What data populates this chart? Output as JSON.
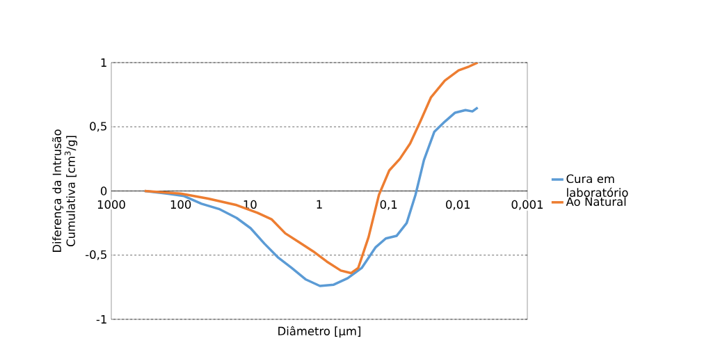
{
  "chart_data": {
    "type": "line",
    "xlabel": "Diâmetro [µm]",
    "ylabel": "Diferença da Intrusão Cumulativa [cm$^{3}$/g]",
    "log": "x",
    "xlim": [
      1000,
      0.001
    ],
    "xticks": [
      1000,
      100,
      10,
      1,
      {
        "value": 0.1,
        "label": "0,1"
      },
      {
        "value": 0.01,
        "label": "0,01"
      },
      {
        "value": 0.001,
        "label": "0,001"
      }
    ],
    "ylim": [
      -1,
      1
    ],
    "yticks": [
      -1,
      {
        "value": -0.5,
        "label": "-0,5"
      },
      0,
      {
        "value": 0.5,
        "label": "0,5"
      },
      1
    ],
    "grid": "y",
    "legend": "right",
    "series": [
      {
        "name": "Cura em laboratório",
        "color": "#5b9bd5",
        "x": [
          331,
          158,
          89,
          50,
          28,
          15.6,
          9.8,
          6.2,
          3.9,
          2.5,
          1.56,
          0.98,
          0.62,
          0.39,
          0.245,
          0.155,
          0.11,
          0.077,
          0.055,
          0.041,
          0.031,
          0.022,
          0.0155,
          0.011,
          0.0078,
          0.0062,
          0.0052
        ],
        "values": [
          0,
          -0.02,
          -0.04,
          -0.1,
          -0.14,
          -0.21,
          -0.29,
          -0.41,
          -0.52,
          -0.6,
          -0.69,
          -0.74,
          -0.73,
          -0.68,
          -0.6,
          -0.44,
          -0.37,
          -0.35,
          -0.25,
          -0.03,
          0.24,
          0.46,
          0.54,
          0.61,
          0.63,
          0.62,
          0.65
        ]
      },
      {
        "name": "Ao Natural",
        "color": "#ed7d31",
        "x": [
          331,
          100,
          40,
          15.6,
          7.8,
          4.9,
          3.1,
          1.95,
          1.23,
          0.78,
          0.49,
          0.35,
          0.275,
          0.195,
          0.138,
          0.098,
          0.069,
          0.049,
          0.035,
          0.0245,
          0.0155,
          0.0098,
          0.0069,
          0.0052
        ],
        "values": [
          0,
          -0.02,
          -0.06,
          -0.11,
          -0.17,
          -0.22,
          -0.33,
          -0.4,
          -0.47,
          -0.55,
          -0.62,
          -0.64,
          -0.6,
          -0.36,
          -0.03,
          0.16,
          0.25,
          0.37,
          0.54,
          0.73,
          0.86,
          0.94,
          0.97,
          1.0
        ]
      }
    ]
  }
}
